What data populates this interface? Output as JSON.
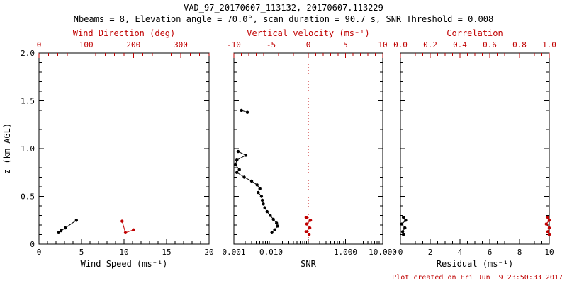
{
  "header": {
    "title": "VAD_97_20170607_113132, 20170607.113229",
    "subtitle": "Nbeams = 8, Elevation angle = 70.0°, scan duration = 90.7 s, SNR Threshold = 0.008"
  },
  "footer": {
    "created": "Plot created on Fri Jun  9 23:50:33 2017"
  },
  "colors": {
    "primary": "#000000",
    "secondary": "#c00000",
    "background": "#ffffff"
  },
  "chart_data": {
    "type": "scatter",
    "title": "VAD_97_20170607_113132, 20170607.113229",
    "subtitle": "Nbeams = 8, Elevation angle = 70.0°, scan duration = 90.7 s, SNR Threshold = 0.008",
    "y_axis": {
      "label": "z (km AGL)",
      "min": 0,
      "max": 2.0,
      "ticks": [
        0,
        0.5,
        1.0,
        1.5,
        2.0
      ],
      "tick_labels": [
        "0",
        "0.5",
        "1.0",
        "1.5",
        "2.0"
      ],
      "minor_step": 0.1
    },
    "panels": [
      {
        "id": "wind",
        "show_y_labels": true,
        "plot": {
          "left": 55,
          "right": 295,
          "top": 75,
          "bottom": 345
        },
        "bottom_axis": {
          "label": "Wind Speed (ms⁻¹)",
          "scale": "linear",
          "min": 0,
          "max": 20,
          "ticks": [
            0,
            5,
            10,
            15,
            20
          ],
          "tick_labels": [
            "0",
            "5",
            "10",
            "15",
            "20"
          ],
          "minor_step": 1
        },
        "top_axis": {
          "label": "Wind Direction (deg)",
          "scale": "linear",
          "min": 0,
          "max": 360,
          "color": "#c00000",
          "ticks": [
            0,
            100,
            200,
            300
          ],
          "tick_labels": [
            "0",
            "100",
            "200",
            "300"
          ],
          "minor_step": 20
        },
        "series": [
          {
            "name": "wind-speed",
            "axis": "bottom",
            "color": "#000000",
            "segments": [
              [
                [
                  2.3,
                  0.12
                ],
                [
                  2.6,
                  0.14
                ],
                [
                  3.1,
                  0.17
                ],
                [
                  4.4,
                  0.25
                ]
              ]
            ]
          },
          {
            "name": "wind-direction",
            "axis": "top",
            "color": "#c00000",
            "segments": [
              [
                [
                  176,
                  0.24
                ],
                [
                  183,
                  0.12
                ],
                [
                  200,
                  0.15
                ]
              ]
            ]
          }
        ]
      },
      {
        "id": "snr",
        "show_y_labels": false,
        "plot": {
          "left": 330,
          "right": 540,
          "top": 75,
          "bottom": 345
        },
        "bottom_axis": {
          "label": "SNR",
          "scale": "log",
          "min": 0.001,
          "max": 10,
          "ticks": [
            0.001,
            0.01,
            0.1,
            1,
            10
          ],
          "tick_labels": [
            "0.001",
            "0.010",
            "",
            "1.000",
            "10.000"
          ]
        },
        "top_axis": {
          "label": "Vertical velocity (ms⁻¹)",
          "scale": "linear",
          "min": -10,
          "max": 10,
          "color": "#c00000",
          "ticks": [
            -10,
            -5,
            0,
            5,
            10
          ],
          "tick_labels": [
            "-10",
            "-5",
            "0",
            "5",
            "10"
          ],
          "minor_step": 1
        },
        "ref_line": {
          "axis": "top",
          "value": 0,
          "color": "#c00000",
          "style": "dotted"
        },
        "series": [
          {
            "name": "snr-profile",
            "axis": "bottom",
            "color": "#000000",
            "segments": [
              [
                [
                  0.0016,
                  1.4
                ],
                [
                  0.0023,
                  1.38
                ]
              ],
              [
                [
                  0.0013,
                  0.97
                ],
                [
                  0.0021,
                  0.93
                ],
                [
                  0.0012,
                  0.88
                ],
                [
                  0.0011,
                  0.83
                ],
                [
                  0.0014,
                  0.78
                ],
                [
                  0.0012,
                  0.75
                ],
                [
                  0.0019,
                  0.7
                ],
                [
                  0.003,
                  0.66
                ],
                [
                  0.0042,
                  0.62
                ],
                [
                  0.005,
                  0.58
                ],
                [
                  0.0045,
                  0.54
                ],
                [
                  0.0055,
                  0.5
                ],
                [
                  0.0058,
                  0.46
                ],
                [
                  0.0062,
                  0.42
                ],
                [
                  0.0068,
                  0.38
                ],
                [
                  0.0078,
                  0.34
                ],
                [
                  0.0095,
                  0.3
                ],
                [
                  0.0115,
                  0.26
                ],
                [
                  0.014,
                  0.22
                ],
                [
                  0.015,
                  0.19
                ],
                [
                  0.0125,
                  0.15
                ],
                [
                  0.0105,
                  0.12
                ]
              ]
            ]
          },
          {
            "name": "vertical-velocity",
            "axis": "top",
            "color": "#c00000",
            "segments": [
              [
                [
                  -0.3,
                  0.28
                ],
                [
                  0.3,
                  0.25
                ],
                [
                  -0.2,
                  0.21
                ],
                [
                  0.2,
                  0.17
                ],
                [
                  -0.3,
                  0.13
                ],
                [
                  0.1,
                  0.1
                ]
              ]
            ]
          }
        ]
      },
      {
        "id": "residual",
        "show_y_labels": false,
        "plot": {
          "left": 565,
          "right": 775,
          "top": 75,
          "bottom": 345
        },
        "bottom_axis": {
          "label": "Residual (ms⁻¹)",
          "scale": "linear",
          "min": 0,
          "max": 10,
          "ticks": [
            0,
            2,
            4,
            6,
            8,
            10
          ],
          "tick_labels": [
            "0",
            "2",
            "4",
            "6",
            "8",
            "10"
          ],
          "minor_step": 0.5
        },
        "top_axis": {
          "label": "Correlation",
          "scale": "linear",
          "min": 0,
          "max": 1,
          "color": "#c00000",
          "ticks": [
            0,
            0.2,
            0.4,
            0.6,
            0.8,
            1.0
          ],
          "tick_labels": [
            "0.0",
            "0.2",
            "0.4",
            "0.6",
            "0.8",
            "1.0"
          ],
          "minor_step": 0.05
        },
        "series": [
          {
            "name": "residual",
            "axis": "bottom",
            "color": "#000000",
            "segments": [
              [
                [
                  0.2,
                  0.28
                ],
                [
                  0.35,
                  0.25
                ],
                [
                  0.1,
                  0.21
                ],
                [
                  0.3,
                  0.17
                ],
                [
                  0.15,
                  0.13
                ],
                [
                  0.2,
                  0.1
                ]
              ]
            ]
          },
          {
            "name": "correlation",
            "axis": "top",
            "color": "#c00000",
            "segments": [
              [
                [
                  0.99,
                  0.28
                ],
                [
                  1.0,
                  0.25
                ],
                [
                  0.98,
                  0.21
                ],
                [
                  1.0,
                  0.17
                ],
                [
                  0.99,
                  0.13
                ],
                [
                  1.0,
                  0.1
                ]
              ]
            ]
          }
        ]
      }
    ]
  }
}
